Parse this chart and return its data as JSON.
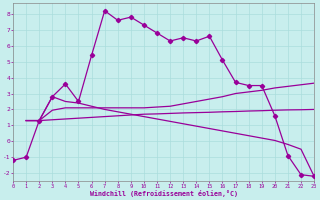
{
  "xlabel": "Windchill (Refroidissement éolien,°C)",
  "bg_color": "#c8eeed",
  "line_color": "#990099",
  "grid_color": "#aadddd",
  "xlim": [
    0,
    23
  ],
  "ylim": [
    -2.5,
    8.7
  ],
  "xticks": [
    0,
    1,
    2,
    3,
    4,
    5,
    6,
    7,
    8,
    9,
    10,
    11,
    12,
    13,
    14,
    15,
    16,
    17,
    18,
    19,
    20,
    21,
    22,
    23
  ],
  "yticks": [
    -2,
    -1,
    0,
    1,
    2,
    3,
    4,
    5,
    6,
    7,
    8
  ],
  "s1_x": [
    0,
    1,
    2,
    3,
    4,
    5,
    6,
    7,
    8,
    9,
    10,
    11,
    12,
    13,
    14,
    15,
    16,
    17,
    18,
    19,
    20,
    21,
    22,
    23
  ],
  "s1_y": [
    -1.2,
    -1.0,
    1.3,
    2.8,
    3.6,
    2.5,
    5.4,
    8.2,
    7.6,
    7.8,
    7.3,
    6.8,
    6.3,
    6.5,
    6.3,
    6.6,
    5.1,
    3.7,
    3.5,
    3.5,
    1.6,
    -0.9,
    -2.1,
    -2.2
  ],
  "s2_x": [
    1,
    2,
    3,
    4,
    5,
    6,
    7,
    8,
    9,
    10,
    11,
    12,
    13,
    14,
    15,
    16,
    17,
    18,
    19,
    20,
    21,
    22,
    23
  ],
  "s2_y": [
    1.3,
    1.3,
    1.35,
    1.4,
    1.45,
    1.5,
    1.55,
    1.6,
    1.65,
    1.7,
    1.72,
    1.75,
    1.78,
    1.8,
    1.82,
    1.85,
    1.87,
    1.9,
    1.92,
    1.95,
    1.97,
    1.98,
    2.0
  ],
  "s3_x": [
    1,
    2,
    3,
    4,
    5,
    6,
    7,
    8,
    9,
    10,
    11,
    12,
    13,
    14,
    15,
    16,
    17,
    18,
    19,
    20,
    21,
    22,
    23
  ],
  "s3_y": [
    1.3,
    1.3,
    1.95,
    2.1,
    2.1,
    2.1,
    2.1,
    2.1,
    2.1,
    2.1,
    2.15,
    2.2,
    2.35,
    2.5,
    2.65,
    2.8,
    3.0,
    3.1,
    3.2,
    3.35,
    3.45,
    3.55,
    3.65
  ],
  "s4_x": [
    1,
    2,
    3,
    4,
    5,
    6,
    7,
    8,
    9,
    10,
    11,
    12,
    13,
    14,
    15,
    16,
    17,
    18,
    19,
    20,
    21,
    22,
    23
  ],
  "s4_y": [
    1.3,
    1.3,
    2.8,
    2.5,
    2.4,
    2.2,
    2.0,
    1.85,
    1.7,
    1.55,
    1.4,
    1.25,
    1.1,
    0.95,
    0.8,
    0.65,
    0.5,
    0.35,
    0.2,
    0.05,
    -0.2,
    -0.5,
    -2.2
  ]
}
